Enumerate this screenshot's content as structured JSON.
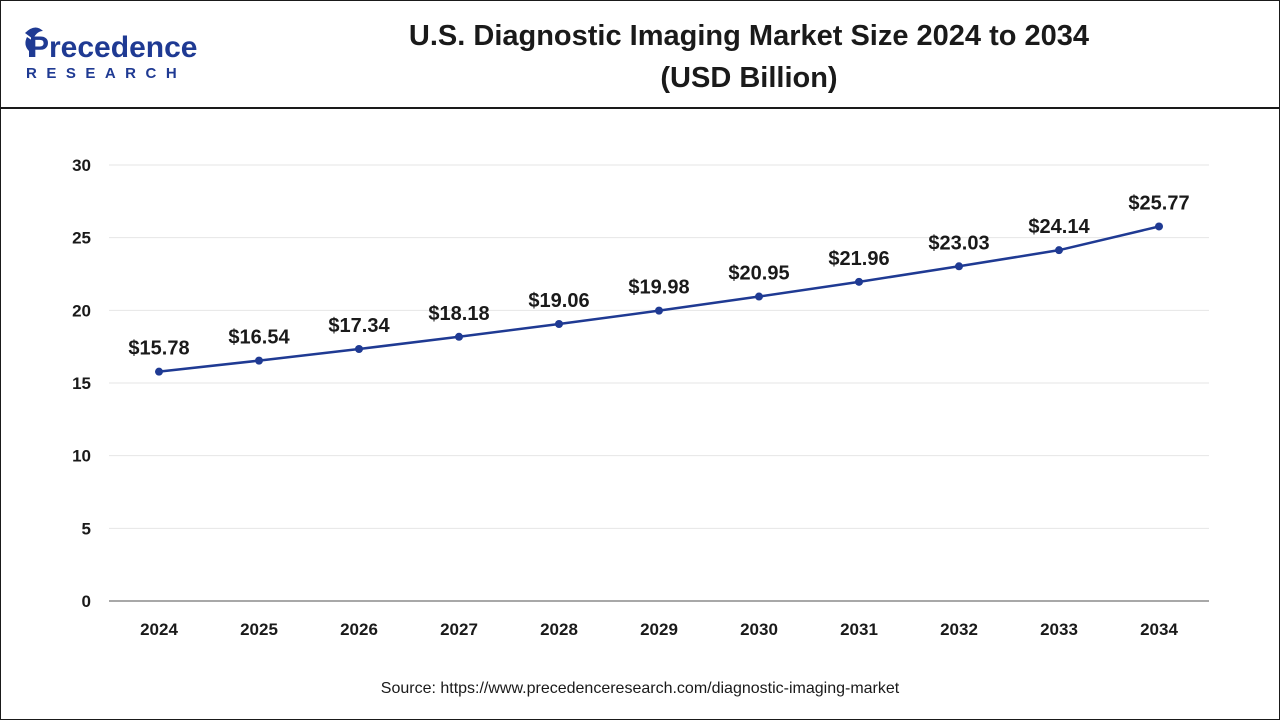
{
  "header": {
    "logo_main": "Precedence",
    "logo_sub": "RESEARCH",
    "title_line1": "U.S. Diagnostic Imaging Market Size 2024 to 2034",
    "title_line2": "(USD Billion)"
  },
  "source": "Source: https://www.precedenceresearch.com/diagnostic-imaging-market",
  "colors": {
    "line": "#1f3a93",
    "logo_blue": "#1f3a93",
    "grid": "#e6e6e6",
    "axis": "#8c8c8c",
    "text": "#1a1a1a"
  },
  "chart_data": {
    "type": "line",
    "title": "U.S. Diagnostic Imaging Market Size 2024 to 2034 (USD Billion)",
    "xlabel": "",
    "ylabel": "",
    "categories": [
      "2024",
      "2025",
      "2026",
      "2027",
      "2028",
      "2029",
      "2030",
      "2031",
      "2032",
      "2033",
      "2034"
    ],
    "values": [
      15.78,
      16.54,
      17.34,
      18.18,
      19.06,
      19.98,
      20.95,
      21.96,
      23.03,
      24.14,
      25.77
    ],
    "data_labels": [
      "$15.78",
      "$16.54",
      "$17.34",
      "$18.18",
      "$19.06",
      "$19.98",
      "$20.95",
      "$21.96",
      "$23.03",
      "$24.14",
      "$25.77"
    ],
    "ylim": [
      0,
      30
    ],
    "yticks": [
      0,
      5,
      10,
      15,
      20,
      25,
      30
    ],
    "grid": true,
    "legend": "none"
  }
}
